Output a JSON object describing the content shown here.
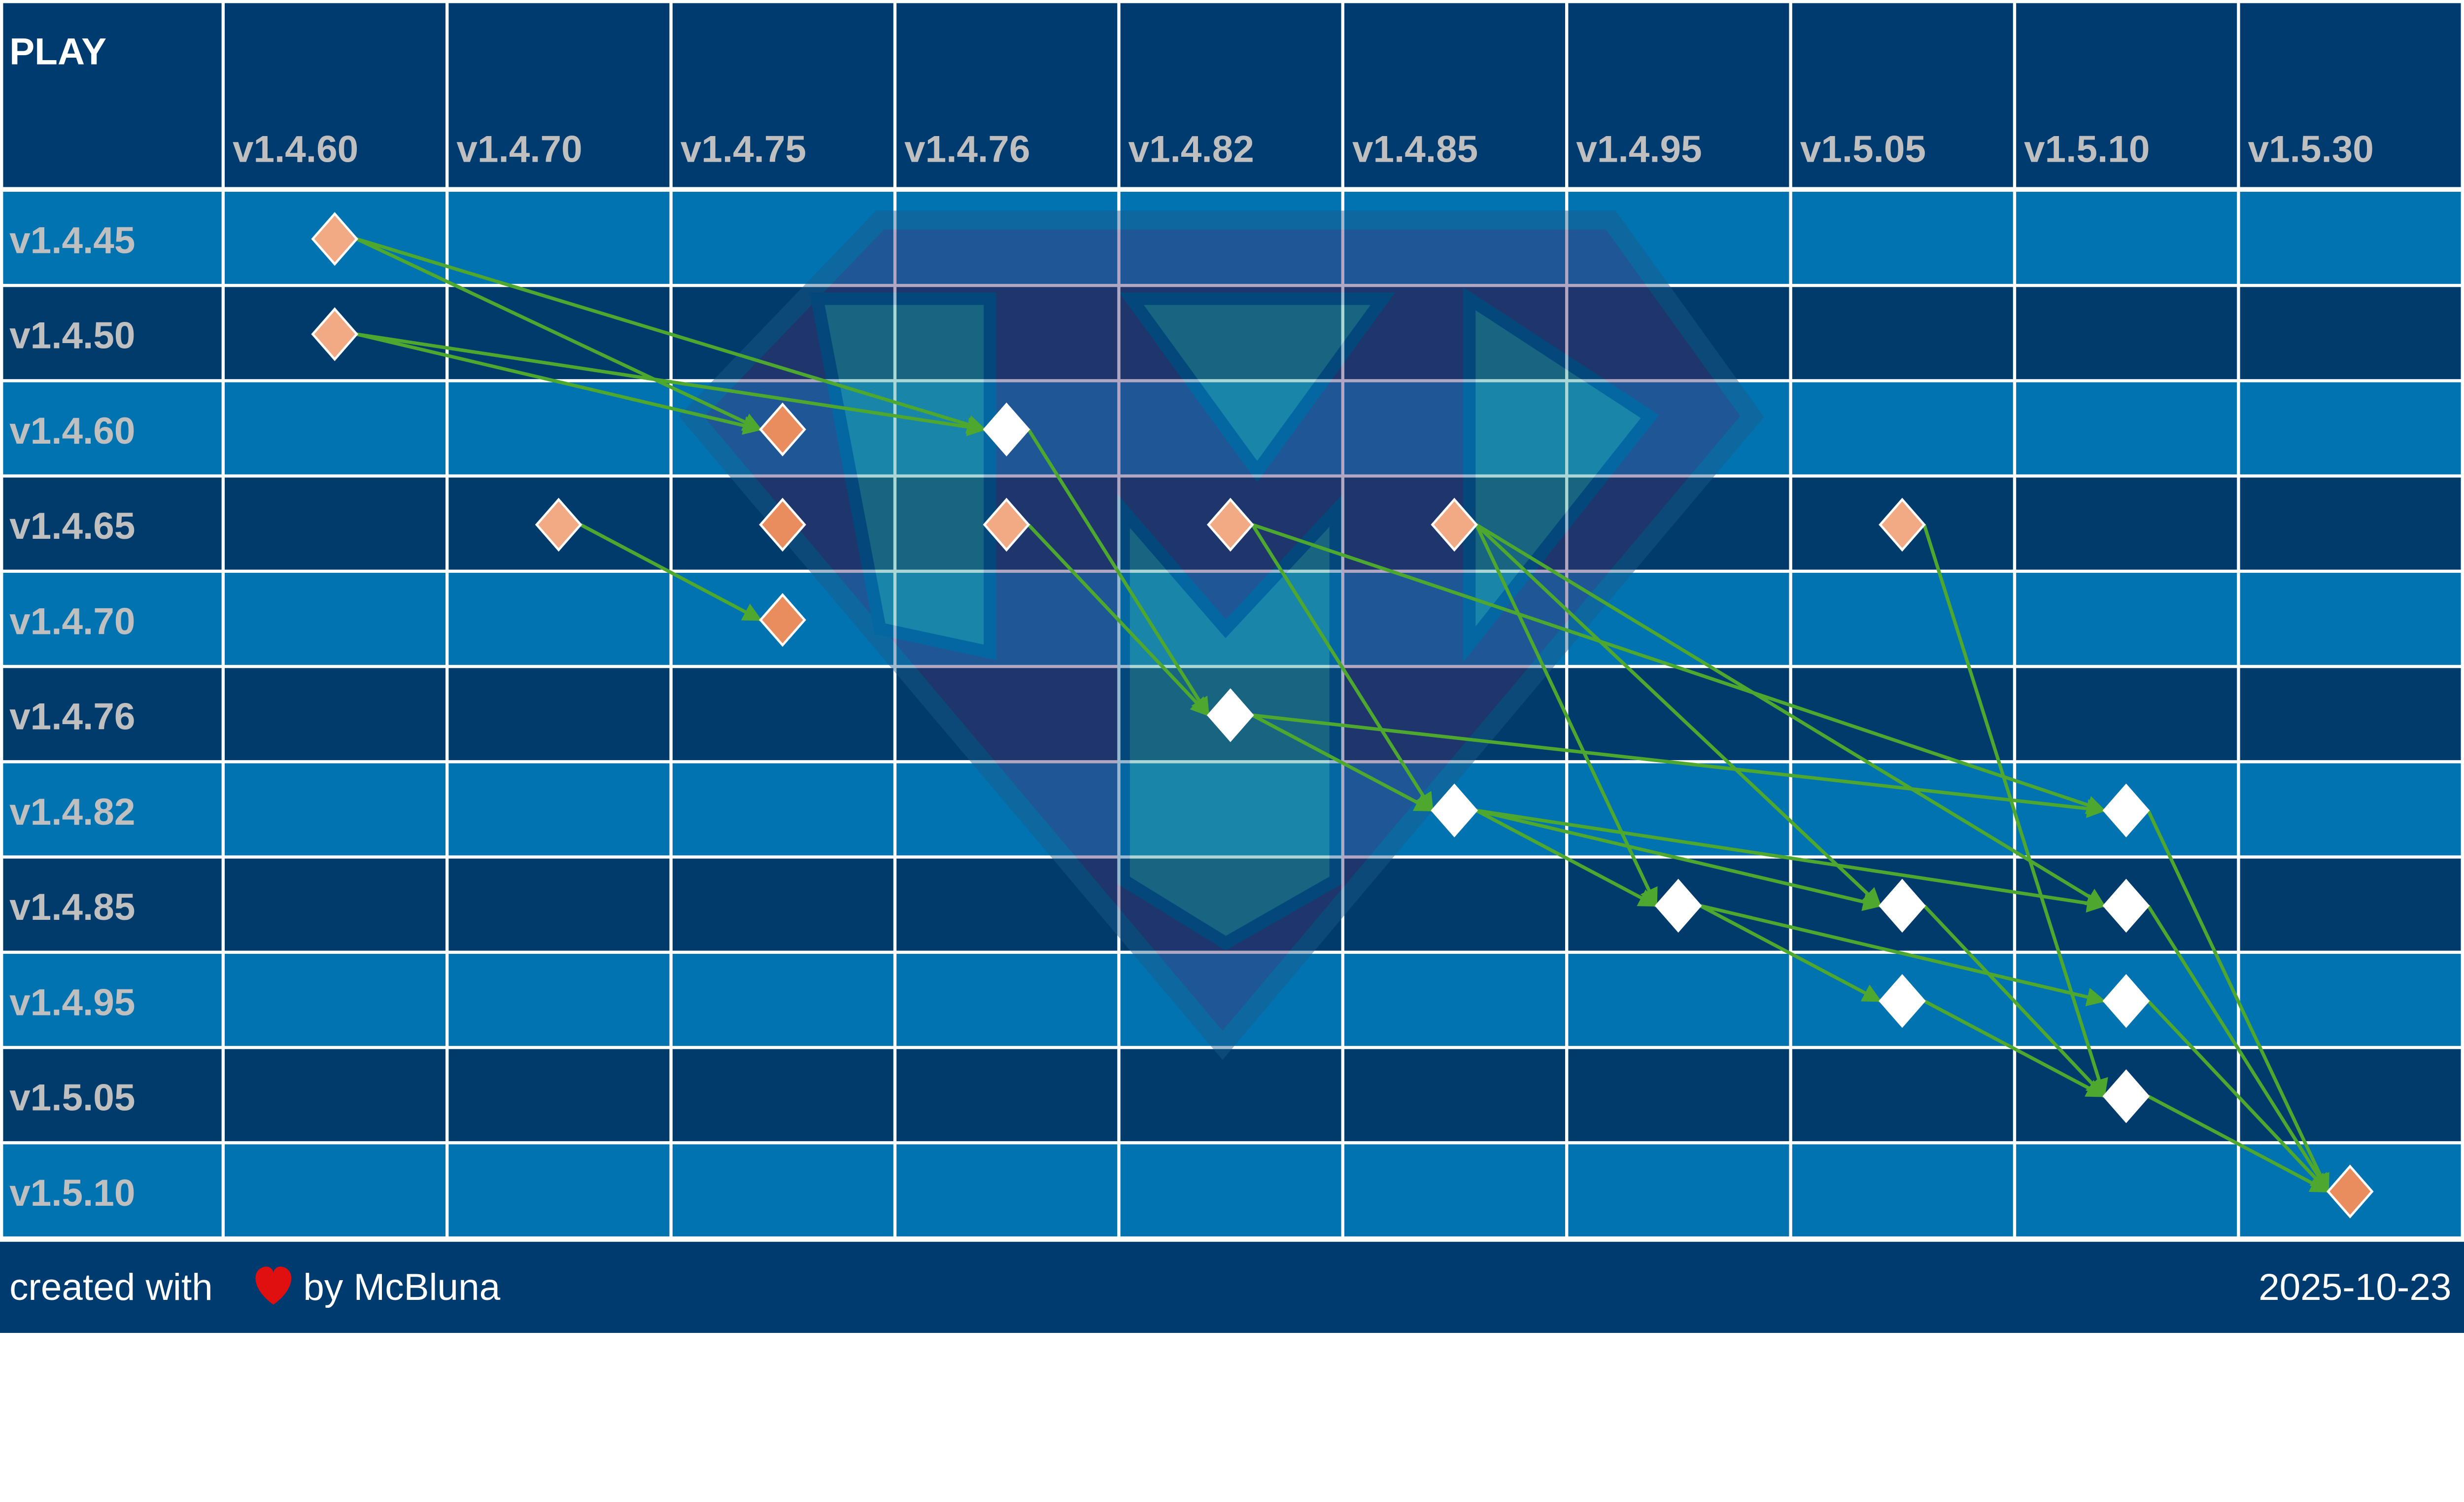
{
  "title": "PLAY",
  "columns": [
    "v1.4.60",
    "v1.4.70",
    "v1.4.75",
    "v1.4.76",
    "v1.4.82",
    "v1.4.85",
    "v1.4.95",
    "v1.5.05",
    "v1.5.10",
    "v1.5.30"
  ],
  "rows": [
    "v1.4.45",
    "v1.4.50",
    "v1.4.60",
    "v1.4.65",
    "v1.4.70",
    "v1.4.76",
    "v1.4.82",
    "v1.4.85",
    "v1.4.95",
    "v1.5.05",
    "v1.5.10"
  ],
  "colors": {
    "header_bg": "#003B6F",
    "row_light": "#0073B0",
    "row_dark": "#003B6C",
    "grid_line": "#FFFFFF",
    "label_text": "#BFBFBF",
    "arrow": "#4EA72E",
    "marker_light": "#F2AA84",
    "marker_dark": "#E98D5F",
    "marker_white": "#FFFFFF",
    "heart": "#E01010"
  },
  "watermark": {
    "icon": "shield-m-logo-icon"
  },
  "markers": [
    {
      "row": "v1.4.45",
      "col": "v1.4.60",
      "style": "light"
    },
    {
      "row": "v1.4.50",
      "col": "v1.4.60",
      "style": "light"
    },
    {
      "row": "v1.4.60",
      "col": "v1.4.75",
      "style": "dark"
    },
    {
      "row": "v1.4.60",
      "col": "v1.4.76",
      "style": "white"
    },
    {
      "row": "v1.4.65",
      "col": "v1.4.70",
      "style": "light"
    },
    {
      "row": "v1.4.65",
      "col": "v1.4.75",
      "style": "dark"
    },
    {
      "row": "v1.4.65",
      "col": "v1.4.76",
      "style": "light"
    },
    {
      "row": "v1.4.65",
      "col": "v1.4.82",
      "style": "light"
    },
    {
      "row": "v1.4.65",
      "col": "v1.4.85",
      "style": "light"
    },
    {
      "row": "v1.4.65",
      "col": "v1.5.05",
      "style": "light"
    },
    {
      "row": "v1.4.70",
      "col": "v1.4.75",
      "style": "dark"
    },
    {
      "row": "v1.4.76",
      "col": "v1.4.82",
      "style": "white"
    },
    {
      "row": "v1.4.82",
      "col": "v1.4.85",
      "style": "white"
    },
    {
      "row": "v1.4.82",
      "col": "v1.5.10",
      "style": "white"
    },
    {
      "row": "v1.4.85",
      "col": "v1.4.95",
      "style": "white"
    },
    {
      "row": "v1.4.85",
      "col": "v1.5.05",
      "style": "white"
    },
    {
      "row": "v1.4.85",
      "col": "v1.5.10",
      "style": "white"
    },
    {
      "row": "v1.4.95",
      "col": "v1.5.05",
      "style": "white"
    },
    {
      "row": "v1.4.95",
      "col": "v1.5.10",
      "style": "white"
    },
    {
      "row": "v1.5.05",
      "col": "v1.5.10",
      "style": "white"
    },
    {
      "row": "v1.5.10",
      "col": "v1.5.30",
      "style": "dark"
    }
  ],
  "arrows": [
    {
      "from": [
        "v1.4.45",
        "v1.4.60"
      ],
      "to": [
        "v1.4.60",
        "v1.4.75"
      ]
    },
    {
      "from": [
        "v1.4.45",
        "v1.4.60"
      ],
      "to": [
        "v1.4.60",
        "v1.4.76"
      ]
    },
    {
      "from": [
        "v1.4.50",
        "v1.4.60"
      ],
      "to": [
        "v1.4.60",
        "v1.4.75"
      ]
    },
    {
      "from": [
        "v1.4.50",
        "v1.4.60"
      ],
      "to": [
        "v1.4.60",
        "v1.4.76"
      ]
    },
    {
      "from": [
        "v1.4.65",
        "v1.4.70"
      ],
      "to": [
        "v1.4.70",
        "v1.4.75"
      ]
    },
    {
      "from": [
        "v1.4.60",
        "v1.4.76"
      ],
      "to": [
        "v1.4.76",
        "v1.4.82"
      ]
    },
    {
      "from": [
        "v1.4.65",
        "v1.4.76"
      ],
      "to": [
        "v1.4.76",
        "v1.4.82"
      ]
    },
    {
      "from": [
        "v1.4.65",
        "v1.4.82"
      ],
      "to": [
        "v1.4.82",
        "v1.4.85"
      ]
    },
    {
      "from": [
        "v1.4.65",
        "v1.4.82"
      ],
      "to": [
        "v1.4.82",
        "v1.5.10"
      ]
    },
    {
      "from": [
        "v1.4.65",
        "v1.4.85"
      ],
      "to": [
        "v1.4.85",
        "v1.4.95"
      ]
    },
    {
      "from": [
        "v1.4.65",
        "v1.4.85"
      ],
      "to": [
        "v1.4.85",
        "v1.5.05"
      ]
    },
    {
      "from": [
        "v1.4.65",
        "v1.4.85"
      ],
      "to": [
        "v1.4.85",
        "v1.5.10"
      ]
    },
    {
      "from": [
        "v1.4.65",
        "v1.5.05"
      ],
      "to": [
        "v1.5.05",
        "v1.5.10"
      ]
    },
    {
      "from": [
        "v1.4.76",
        "v1.4.82"
      ],
      "to": [
        "v1.4.82",
        "v1.4.85"
      ]
    },
    {
      "from": [
        "v1.4.76",
        "v1.4.82"
      ],
      "to": [
        "v1.4.82",
        "v1.5.10"
      ]
    },
    {
      "from": [
        "v1.4.82",
        "v1.4.85"
      ],
      "to": [
        "v1.4.85",
        "v1.4.95"
      ]
    },
    {
      "from": [
        "v1.4.82",
        "v1.4.85"
      ],
      "to": [
        "v1.4.85",
        "v1.5.05"
      ]
    },
    {
      "from": [
        "v1.4.82",
        "v1.4.85"
      ],
      "to": [
        "v1.4.85",
        "v1.5.10"
      ]
    },
    {
      "from": [
        "v1.4.85",
        "v1.4.95"
      ],
      "to": [
        "v1.4.95",
        "v1.5.05"
      ]
    },
    {
      "from": [
        "v1.4.85",
        "v1.4.95"
      ],
      "to": [
        "v1.4.95",
        "v1.5.10"
      ]
    },
    {
      "from": [
        "v1.4.85",
        "v1.5.05"
      ],
      "to": [
        "v1.5.05",
        "v1.5.10"
      ]
    },
    {
      "from": [
        "v1.4.95",
        "v1.5.05"
      ],
      "to": [
        "v1.5.05",
        "v1.5.10"
      ]
    },
    {
      "from": [
        "v1.4.82",
        "v1.5.10"
      ],
      "to": [
        "v1.5.10",
        "v1.5.30"
      ]
    },
    {
      "from": [
        "v1.4.85",
        "v1.5.10"
      ],
      "to": [
        "v1.5.10",
        "v1.5.30"
      ]
    },
    {
      "from": [
        "v1.4.95",
        "v1.5.10"
      ],
      "to": [
        "v1.5.10",
        "v1.5.30"
      ]
    },
    {
      "from": [
        "v1.5.05",
        "v1.5.10"
      ],
      "to": [
        "v1.5.10",
        "v1.5.30"
      ]
    }
  ],
  "footer": {
    "created_prefix": "created with",
    "heart_icon": "heart-icon",
    "created_suffix": "by McBluna",
    "date": "2025-10-23"
  }
}
